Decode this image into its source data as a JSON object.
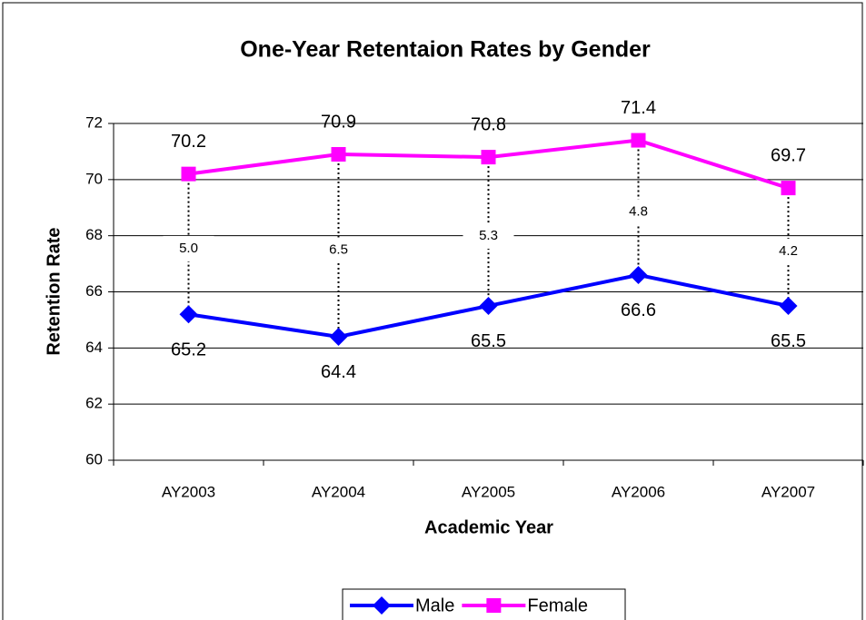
{
  "chart_data": {
    "type": "line",
    "title": "One-Year Retentaion Rates by Gender",
    "x_label": "Academic Year",
    "y_label": "Retention Rate",
    "categories": [
      "AY2003",
      "AY2004",
      "AY2005",
      "AY2006",
      "AY2007"
    ],
    "series": [
      {
        "name": "Male",
        "color": "#0000ff",
        "marker": "diamond",
        "values": [
          65.2,
          64.4,
          65.5,
          66.6,
          65.5
        ]
      },
      {
        "name": "Female",
        "color": "#ff00ff",
        "marker": "square",
        "values": [
          70.2,
          70.9,
          70.8,
          71.4,
          69.7
        ]
      }
    ],
    "gaps": {
      "values": [
        5,
        6.5,
        5.3,
        4.8,
        4.2
      ],
      "value_labels": [
        "5.0",
        "6.5",
        "5.3",
        "4.8",
        "4.2"
      ]
    },
    "ylim": [
      60,
      72
    ],
    "yticks": [
      60,
      62,
      64,
      66,
      68,
      70,
      72
    ],
    "grid": true,
    "legend": "bottom"
  }
}
